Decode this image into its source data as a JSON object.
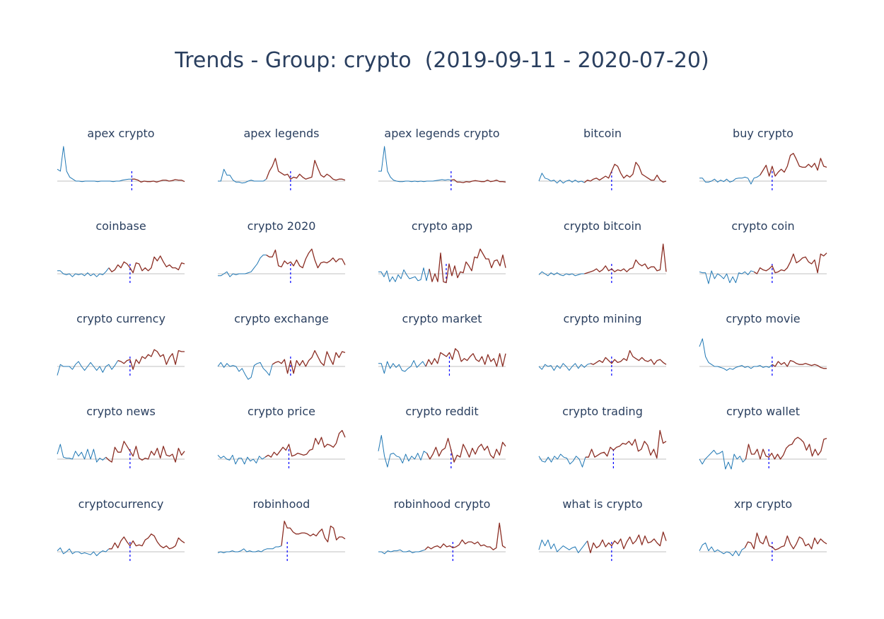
{
  "title": "Trends - Group: crypto  (2019-09-11 - 2020-07-20)",
  "colors": {
    "pre": "#1f77b4",
    "post": "#8b2e24",
    "zero_line": "#c0c0c0",
    "divider": "#0000ff",
    "title_text": "#2a3f5f"
  },
  "chart_data": [
    {
      "type": "line",
      "title": "apex crypto",
      "split_index": 24,
      "divider_index": 24,
      "values": [
        1.2,
        1.0,
        3.5,
        1.0,
        0.4,
        0.2,
        0.0,
        0.0,
        -0.05,
        0.0,
        0.0,
        0.0,
        0.0,
        -0.05,
        0.0,
        0.0,
        0.0,
        0.0,
        -0.05,
        0.0,
        0.0,
        0.1,
        0.15,
        0.2,
        0.2,
        0.2,
        0.1,
        -0.1,
        0.0,
        -0.05,
        -0.05,
        0.0,
        -0.1,
        0.0,
        0.1,
        0.1,
        0.0,
        0.05,
        0.15,
        0.1,
        0.1,
        -0.05
      ]
    },
    {
      "type": "line",
      "title": "apex legends",
      "split_index": 16,
      "divider_index": 24,
      "values": [
        0.0,
        0.0,
        1.2,
        0.6,
        0.6,
        0.1,
        -0.1,
        -0.1,
        -0.2,
        -0.15,
        0.0,
        0.1,
        0.0,
        0.0,
        0.0,
        0.0,
        0.2,
        1.0,
        1.5,
        2.3,
        1.0,
        0.8,
        0.6,
        0.7,
        0.2,
        0.4,
        0.3,
        0.7,
        0.4,
        0.2,
        0.3,
        0.4,
        2.1,
        1.3,
        0.6,
        0.4,
        0.7,
        0.5,
        0.2,
        0.1,
        0.2,
        0.2,
        0.1
      ]
    },
    {
      "type": "line",
      "title": "apex legends crypto",
      "split_index": 24,
      "divider_index": 24,
      "values": [
        1.0,
        1.0,
        3.5,
        1.0,
        0.4,
        0.1,
        0.0,
        -0.05,
        -0.05,
        0.0,
        0.0,
        -0.05,
        0.0,
        -0.05,
        0.0,
        -0.05,
        0.0,
        0.0,
        0.0,
        0.05,
        0.1,
        0.15,
        0.1,
        0.15,
        0.1,
        0.15,
        -0.1,
        -0.1,
        -0.15,
        -0.05,
        -0.1,
        0.0,
        0.05,
        0.0,
        -0.05,
        -0.05,
        0.1,
        -0.05,
        0.0,
        0.1,
        -0.05,
        -0.05,
        -0.1
      ]
    },
    {
      "type": "line",
      "title": "bitcoin",
      "split_index": 15,
      "divider_index": 24,
      "values": [
        0.0,
        0.8,
        0.3,
        0.2,
        0.0,
        0.1,
        -0.2,
        0.1,
        -0.2,
        0.0,
        0.1,
        -0.1,
        0.1,
        -0.1,
        0.0,
        -0.15,
        0.1,
        0.0,
        0.2,
        0.3,
        0.1,
        0.3,
        0.5,
        0.3,
        1.0,
        1.7,
        1.5,
        0.8,
        0.3,
        0.6,
        0.4,
        0.7,
        1.9,
        1.5,
        0.7,
        0.5,
        0.3,
        0.1,
        0.1,
        0.6,
        0.1,
        -0.1,
        0.0
      ]
    },
    {
      "type": "line",
      "title": "buy crypto",
      "split_index": 20,
      "divider_index": 24,
      "values": [
        0.3,
        0.3,
        -0.1,
        -0.1,
        0.0,
        0.2,
        -0.1,
        0.1,
        -0.05,
        0.2,
        -0.1,
        0.0,
        0.25,
        0.3,
        0.3,
        0.4,
        0.3,
        -0.3,
        0.3,
        0.4,
        0.6,
        1.1,
        1.6,
        0.5,
        1.5,
        0.5,
        0.9,
        1.2,
        0.9,
        1.5,
        2.6,
        2.8,
        2.2,
        1.5,
        1.4,
        1.4,
        1.7,
        1.4,
        1.8,
        1.1,
        2.3,
        1.5,
        1.4
      ]
    },
    {
      "type": "line",
      "title": "coinbase",
      "split_index": 17,
      "divider_index": 24,
      "values": [
        0.3,
        0.3,
        0.0,
        -0.1,
        0.0,
        -0.3,
        0.0,
        -0.1,
        0.0,
        -0.2,
        0.1,
        -0.2,
        0.0,
        -0.3,
        0.0,
        -0.1,
        0.2,
        0.6,
        0.2,
        0.4,
        0.9,
        0.6,
        1.2,
        1.0,
        0.6,
        0.1,
        1.1,
        1.0,
        0.3,
        0.6,
        0.3,
        0.6,
        1.7,
        1.3,
        1.8,
        1.2,
        0.7,
        0.9,
        0.6,
        0.6,
        0.4,
        1.1,
        1.0
      ]
    },
    {
      "type": "line",
      "title": "crypto 2020",
      "split_index": 16,
      "divider_index": 24,
      "values": [
        -0.2,
        -0.2,
        0.0,
        0.2,
        -0.3,
        0.0,
        -0.1,
        0.0,
        0.0,
        0.0,
        0.1,
        0.2,
        0.6,
        1.0,
        1.6,
        1.9,
        1.9,
        1.7,
        1.7,
        2.4,
        0.8,
        0.7,
        1.3,
        1.0,
        1.2,
        0.8,
        1.4,
        0.8,
        0.6,
        1.5,
        2.1,
        2.5,
        1.4,
        0.6,
        1.1,
        1.2,
        1.1,
        1.3,
        1.6,
        1.2,
        1.5,
        1.5,
        0.9
      ]
    },
    {
      "type": "line",
      "title": "crypto app",
      "split_index": 18,
      "divider_index": 24,
      "values": [
        0.2,
        0.2,
        -0.3,
        0.3,
        -0.8,
        -0.3,
        -0.8,
        -0.1,
        -0.5,
        0.4,
        -0.1,
        -0.5,
        -0.4,
        -0.3,
        -0.7,
        -0.6,
        0.6,
        -0.7,
        0.5,
        -0.8,
        0.0,
        -0.8,
        2.1,
        -0.8,
        -0.9,
        1.0,
        -0.2,
        0.8,
        -0.4,
        0.2,
        0.1,
        1.2,
        0.8,
        0.3,
        1.7,
        1.6,
        2.5,
        2.0,
        1.5,
        1.5,
        0.6,
        1.3,
        1.4,
        0.8,
        1.9,
        0.6
      ]
    },
    {
      "type": "line",
      "title": "crypto bitcoin",
      "split_index": 15,
      "divider_index": 24,
      "values": [
        -0.1,
        0.2,
        0.0,
        -0.2,
        0.1,
        -0.1,
        0.1,
        -0.1,
        -0.2,
        0.0,
        -0.1,
        0.0,
        -0.2,
        -0.1,
        0.0,
        0.0,
        0.1,
        0.2,
        0.3,
        0.5,
        0.2,
        0.4,
        0.8,
        0.3,
        0.5,
        0.2,
        0.4,
        0.3,
        0.5,
        0.2,
        0.5,
        0.6,
        1.4,
        1.0,
        0.8,
        1.0,
        0.5,
        0.7,
        0.7,
        0.3,
        0.4,
        3.0,
        0.2
      ]
    },
    {
      "type": "line",
      "title": "crypto coin",
      "split_index": 18,
      "divider_index": 24,
      "values": [
        0.2,
        0.1,
        0.1,
        -1.0,
        0.3,
        -0.5,
        0.0,
        -0.2,
        -0.5,
        0.0,
        -0.9,
        -0.3,
        -0.9,
        0.1,
        0.0,
        0.2,
        -0.1,
        0.3,
        0.2,
        0.0,
        0.6,
        0.4,
        0.3,
        0.5,
        0.8,
        0.1,
        0.2,
        0.4,
        0.3,
        0.6,
        1.2,
        2.0,
        1.1,
        1.3,
        1.6,
        1.7,
        1.2,
        1.0,
        1.4,
        0.1,
        2.0,
        1.8,
        2.1
      ]
    },
    {
      "type": "line",
      "title": "crypto currency",
      "split_index": 20,
      "divider_index": 24,
      "values": [
        -0.9,
        0.2,
        0.0,
        0.0,
        0.0,
        -0.3,
        0.2,
        0.5,
        0.0,
        -0.4,
        0.0,
        0.4,
        0.0,
        -0.4,
        0.0,
        -0.6,
        0.0,
        0.2,
        -0.3,
        0.1,
        0.6,
        0.5,
        0.3,
        0.6,
        0.7,
        -0.3,
        0.7,
        0.3,
        1.0,
        0.8,
        1.2,
        1.0,
        1.7,
        1.5,
        1.0,
        1.2,
        0.2,
        0.9,
        1.3,
        0.2,
        1.6,
        1.5,
        1.5
      ]
    },
    {
      "type": "line",
      "title": "crypto exchange",
      "split_index": 18,
      "divider_index": 24,
      "values": [
        0.0,
        0.4,
        -0.1,
        0.3,
        0.0,
        0.1,
        0.0,
        -0.5,
        -0.2,
        -0.8,
        -1.3,
        -1.1,
        0.1,
        0.3,
        0.4,
        -0.2,
        -0.5,
        -0.9,
        0.2,
        0.4,
        0.5,
        0.3,
        0.7,
        -0.7,
        0.6,
        -0.7,
        0.6,
        0.1,
        0.6,
        0.0,
        0.6,
        0.9,
        1.6,
        1.0,
        0.4,
        0.1,
        1.5,
        0.8,
        0.2,
        1.4,
        0.9,
        1.5,
        1.4
      ]
    },
    {
      "type": "line",
      "title": "crypto market",
      "split_index": 16,
      "divider_index": 24,
      "values": [
        0.3,
        0.3,
        -0.7,
        0.5,
        -0.2,
        0.3,
        -0.1,
        0.2,
        -0.4,
        -0.5,
        -0.2,
        0.0,
        0.6,
        -0.1,
        0.2,
        0.5,
        0.0,
        0.7,
        0.2,
        0.8,
        0.3,
        1.4,
        1.2,
        1.0,
        1.4,
        0.7,
        1.8,
        1.5,
        0.5,
        0.8,
        0.6,
        1.0,
        1.3,
        0.7,
        0.5,
        1.0,
        0.2,
        1.2,
        0.5,
        0.8,
        0.0,
        1.3,
        0.0,
        1.3
      ]
    },
    {
      "type": "line",
      "title": "crypto mining",
      "split_index": 17,
      "divider_index": 24,
      "values": [
        0.0,
        -0.3,
        0.2,
        0.0,
        0.1,
        -0.4,
        0.1,
        -0.2,
        0.3,
        0.0,
        -0.4,
        0.0,
        0.3,
        -0.2,
        0.2,
        -0.1,
        0.2,
        0.3,
        0.2,
        0.4,
        0.6,
        0.4,
        0.9,
        0.6,
        0.3,
        0.7,
        0.4,
        0.5,
        0.8,
        0.6,
        1.6,
        1.0,
        0.8,
        0.6,
        0.9,
        0.6,
        0.5,
        0.7,
        0.2,
        0.6,
        0.7,
        0.4,
        0.2
      ]
    },
    {
      "type": "line",
      "title": "crypto movie",
      "split_index": 24,
      "divider_index": 24,
      "values": [
        2.0,
        2.8,
        1.0,
        0.4,
        0.2,
        0.0,
        0.0,
        -0.1,
        -0.2,
        -0.4,
        -0.2,
        -0.3,
        -0.1,
        0.0,
        0.1,
        -0.1,
        0.0,
        -0.2,
        0.0,
        0.0,
        0.1,
        -0.1,
        0.0,
        -0.1,
        0.2,
        0.0,
        0.5,
        0.2,
        0.4,
        0.0,
        0.6,
        0.5,
        0.3,
        0.2,
        0.2,
        0.3,
        0.2,
        0.1,
        0.2,
        0.1,
        -0.1,
        -0.2,
        -0.2
      ]
    },
    {
      "type": "line",
      "title": "crypto news",
      "split_index": 16,
      "divider_index": 24,
      "values": [
        0.5,
        1.5,
        0.2,
        0.1,
        0.1,
        0.0,
        0.8,
        0.3,
        0.7,
        0.0,
        1.0,
        0.0,
        1.0,
        -0.3,
        0.1,
        -0.1,
        0.2,
        -0.1,
        -0.3,
        1.2,
        0.7,
        0.7,
        1.8,
        1.3,
        0.8,
        0.3,
        1.3,
        0.1,
        -0.1,
        0.1,
        0.0,
        0.8,
        0.4,
        1.1,
        0.1,
        1.3,
        0.4,
        0.3,
        0.5,
        -0.3,
        1.1,
        0.4,
        0.8
      ]
    },
    {
      "type": "line",
      "title": "crypto price",
      "split_index": 16,
      "divider_index": 24,
      "values": [
        0.4,
        0.1,
        0.3,
        0.0,
        -0.1,
        0.4,
        -0.5,
        0.1,
        0.1,
        -0.5,
        0.2,
        -0.2,
        0.0,
        -0.4,
        0.3,
        0.0,
        0.2,
        0.4,
        0.2,
        0.7,
        0.4,
        0.8,
        1.2,
        0.9,
        1.5,
        0.3,
        0.4,
        0.6,
        0.5,
        0.4,
        0.5,
        0.9,
        1.0,
        2.1,
        1.5,
        2.2,
        1.2,
        1.5,
        1.4,
        1.2,
        1.6,
        2.6,
        2.9,
        2.2
      ]
    },
    {
      "type": "line",
      "title": "crypto reddit",
      "split_index": 16,
      "divider_index": 24,
      "values": [
        0.8,
        2.4,
        0.3,
        -0.8,
        0.5,
        0.6,
        0.3,
        0.2,
        -0.4,
        0.5,
        -0.2,
        0.3,
        0.0,
        0.6,
        -0.1,
        0.8,
        0.6,
        0.0,
        0.5,
        1.2,
        0.3,
        0.9,
        1.1,
        2.1,
        0.9,
        -0.3,
        0.4,
        0.2,
        1.5,
        0.9,
        0.2,
        1.1,
        0.5,
        1.2,
        1.5,
        0.9,
        1.3,
        0.4,
        0.1,
        1.0,
        0.4,
        1.7,
        1.3
      ]
    },
    {
      "type": "line",
      "title": "crypto trading",
      "split_index": 15,
      "divider_index": 24,
      "values": [
        0.3,
        -0.2,
        -0.3,
        0.2,
        -0.3,
        0.3,
        0.0,
        0.5,
        0.2,
        0.1,
        -0.5,
        -0.2,
        0.3,
        0.0,
        -0.8,
        0.2,
        0.2,
        1.0,
        0.2,
        0.4,
        0.6,
        0.7,
        0.3,
        1.2,
        0.9,
        1.2,
        1.3,
        1.6,
        1.5,
        1.8,
        1.4,
        2.0,
        0.8,
        1.0,
        1.8,
        1.4,
        0.4,
        1.0,
        0.1,
        2.9,
        1.6,
        1.8
      ]
    },
    {
      "type": "line",
      "title": "crypto wallet",
      "split_index": 16,
      "divider_index": 24,
      "values": [
        0.0,
        -0.5,
        0.0,
        0.3,
        0.6,
        0.9,
        0.5,
        0.6,
        0.8,
        -1.0,
        -0.3,
        -1.0,
        0.5,
        0.0,
        0.3,
        -0.3,
        0.0,
        1.5,
        0.5,
        0.5,
        1.0,
        0.0,
        1.0,
        0.3,
        0.2,
        0.6,
        0.0,
        0.5,
        0.0,
        0.4,
        1.1,
        1.4,
        1.5,
        2.0,
        2.2,
        2.0,
        1.7,
        0.9,
        1.5,
        0.3,
        1.0,
        0.4,
        0.8,
        2.0,
        2.1
      ]
    },
    {
      "type": "line",
      "title": "cryptocurrency",
      "split_index": 17,
      "divider_index": 24,
      "values": [
        0.1,
        0.4,
        -0.2,
        0.0,
        0.3,
        -0.2,
        0.0,
        0.0,
        -0.2,
        -0.1,
        -0.2,
        -0.3,
        0.0,
        -0.4,
        -0.1,
        0.1,
        0.0,
        0.3,
        0.3,
        0.9,
        0.4,
        1.1,
        1.5,
        1.0,
        0.6,
        1.1,
        0.6,
        0.7,
        0.6,
        1.2,
        1.4,
        1.8,
        1.6,
        1.0,
        0.6,
        0.4,
        0.6,
        0.3,
        0.4,
        0.6,
        1.4,
        1.1,
        0.9
      ]
    },
    {
      "type": "line",
      "title": "robinhood",
      "split_index": 22,
      "divider_index": 24,
      "values": [
        -0.1,
        0.0,
        -0.1,
        0.0,
        0.0,
        0.1,
        0.0,
        0.0,
        0.1,
        0.3,
        0.0,
        0.1,
        0.0,
        0.0,
        0.1,
        0.0,
        0.2,
        0.3,
        0.3,
        0.3,
        0.5,
        0.5,
        0.6,
        3.1,
        2.4,
        2.4,
        2.0,
        1.8,
        1.8,
        1.9,
        1.9,
        1.8,
        1.6,
        1.8,
        1.6,
        2.0,
        2.3,
        1.4,
        1.0,
        2.6,
        2.4,
        1.2,
        1.5,
        1.5,
        1.3
      ]
    },
    {
      "type": "line",
      "title": "robinhood crypto",
      "split_index": 15,
      "divider_index": 24,
      "values": [
        0.0,
        0.0,
        -0.2,
        0.1,
        0.0,
        0.1,
        0.1,
        0.2,
        0.0,
        0.0,
        0.1,
        -0.1,
        0.0,
        0.0,
        0.1,
        0.2,
        0.5,
        0.3,
        0.5,
        0.6,
        0.4,
        0.8,
        0.5,
        0.6,
        0.4,
        0.5,
        0.7,
        1.2,
        0.8,
        1.0,
        1.0,
        0.8,
        1.0,
        0.6,
        0.7,
        0.5,
        0.5,
        0.2,
        0.4,
        2.9,
        0.6,
        0.4
      ]
    },
    {
      "type": "line",
      "title": "what is crypto",
      "split_index": 16,
      "divider_index": 24,
      "values": [
        0.2,
        1.2,
        0.6,
        1.2,
        0.3,
        0.8,
        0.0,
        0.3,
        0.6,
        0.4,
        0.2,
        0.4,
        0.5,
        -0.1,
        0.3,
        0.7,
        1.1,
        -0.1,
        0.9,
        0.4,
        0.6,
        1.2,
        0.5,
        0.9,
        0.6,
        1.1,
        0.8,
        1.3,
        0.3,
        1.0,
        1.5,
        0.8,
        1.1,
        1.7,
        0.7,
        1.6,
        0.9,
        1.0,
        1.3,
        0.9,
        0.6,
        2.0,
        1.1
      ]
    },
    {
      "type": "line",
      "title": "xrp crypto",
      "split_index": 15,
      "divider_index": 24,
      "values": [
        0.1,
        0.7,
        0.9,
        0.1,
        0.5,
        0.0,
        0.2,
        0.0,
        -0.2,
        0.0,
        -0.1,
        -0.4,
        0.1,
        -0.4,
        0.2,
        0.4,
        1.0,
        0.9,
        0.3,
        1.9,
        1.0,
        0.8,
        1.6,
        0.6,
        0.5,
        0.2,
        0.3,
        0.5,
        0.6,
        1.6,
        0.8,
        0.3,
        0.8,
        1.5,
        1.3,
        0.6,
        0.8,
        0.3,
        1.4,
        0.8,
        1.3,
        1.0,
        0.8
      ]
    }
  ]
}
